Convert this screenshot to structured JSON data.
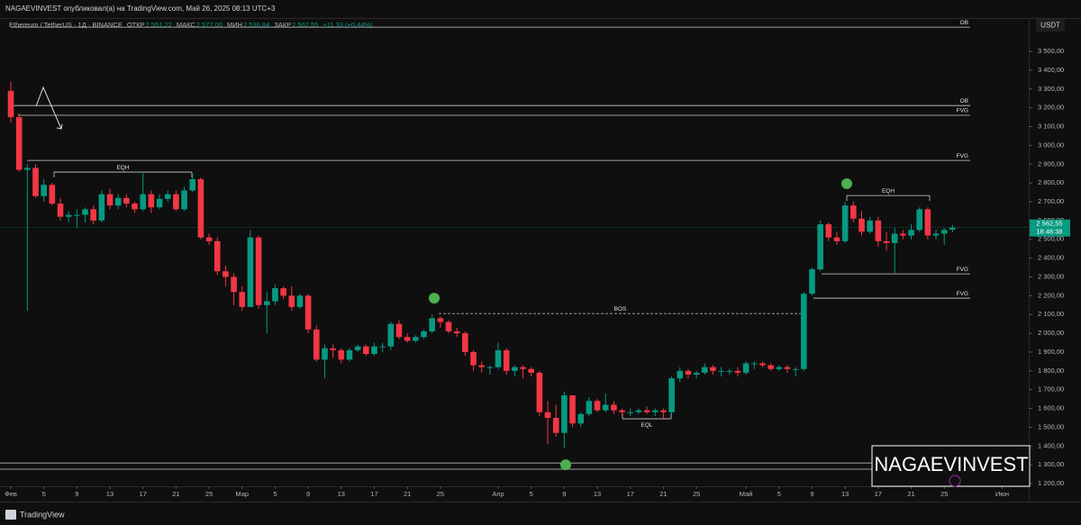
{
  "header": {
    "publisher": "NAGAEVINVEST опубликовал(а) на TradingView.com, Май 26, 2025 08:13 UTC+3",
    "symbol": "Ethereum / TetherUS · 1Д · BINANCE",
    "open_label": "ОТКР",
    "open": "2 551,22",
    "high_label": "МАКС",
    "high": "2 577,00",
    "low_label": "МИН",
    "low": "2 536,84",
    "close_label": "ЗАКР",
    "close": "2 562,55",
    "change": "+11,33 (+0,44%)",
    "currency": "USDT"
  },
  "footer": {
    "brand": "TradingView"
  },
  "watermark": "NAGAEVINVEST",
  "chart_data": {
    "type": "candlestick",
    "up_color": "#089981",
    "down_color": "#f23645",
    "x": [
      0,
      1,
      2,
      3,
      4,
      5,
      6,
      7,
      8,
      9,
      10,
      11,
      12,
      13,
      14,
      15,
      16,
      17,
      18,
      19,
      20,
      21,
      22,
      23,
      24,
      25,
      26,
      27,
      28,
      29,
      30,
      31,
      32,
      33,
      34,
      35,
      36,
      37,
      38,
      39,
      40,
      41,
      42,
      43,
      44,
      45,
      46,
      47,
      48,
      49,
      50,
      51,
      52,
      53,
      54,
      55,
      56,
      57,
      58,
      59,
      60,
      61,
      62,
      63,
      64,
      65,
      66,
      67,
      68,
      69,
      70,
      71,
      72,
      73,
      74,
      75,
      76,
      77,
      78,
      79,
      80,
      81,
      82,
      83,
      84,
      85,
      86,
      87,
      88,
      89,
      90,
      91,
      92,
      93,
      94,
      95,
      96,
      97,
      98,
      99,
      100,
      101,
      102,
      103,
      104,
      105,
      106,
      107,
      108,
      109,
      110,
      111,
      112,
      113,
      114
    ],
    "candles": [
      [
        3290,
        3340,
        3120,
        3150
      ],
      [
        3150,
        3170,
        2860,
        2870
      ],
      [
        2870,
        2900,
        2120,
        2880
      ],
      [
        2880,
        2900,
        2720,
        2730
      ],
      [
        2730,
        2820,
        2700,
        2790
      ],
      [
        2790,
        2800,
        2680,
        2690
      ],
      [
        2690,
        2720,
        2600,
        2620
      ],
      [
        2620,
        2650,
        2590,
        2630
      ],
      [
        2630,
        2660,
        2560,
        2630
      ],
      [
        2630,
        2670,
        2590,
        2660
      ],
      [
        2660,
        2680,
        2580,
        2600
      ],
      [
        2600,
        2760,
        2590,
        2740
      ],
      [
        2740,
        2770,
        2660,
        2680
      ],
      [
        2680,
        2740,
        2660,
        2720
      ],
      [
        2720,
        2740,
        2670,
        2690
      ],
      [
        2690,
        2700,
        2640,
        2660
      ],
      [
        2660,
        2850,
        2650,
        2740
      ],
      [
        2740,
        2760,
        2640,
        2670
      ],
      [
        2670,
        2740,
        2660,
        2715
      ],
      [
        2715,
        2760,
        2700,
        2740
      ],
      [
        2740,
        2760,
        2650,
        2660
      ],
      [
        2660,
        2780,
        2650,
        2760
      ],
      [
        2760,
        2850,
        2750,
        2820
      ],
      [
        2820,
        2830,
        2500,
        2510
      ],
      [
        2510,
        2530,
        2470,
        2490
      ],
      [
        2490,
        2510,
        2310,
        2330
      ],
      [
        2330,
        2360,
        2250,
        2300
      ],
      [
        2300,
        2320,
        2150,
        2220
      ],
      [
        2220,
        2250,
        2120,
        2140
      ],
      [
        2140,
        2550,
        2140,
        2510
      ],
      [
        2510,
        2520,
        2130,
        2150
      ],
      [
        2150,
        2220,
        2000,
        2170
      ],
      [
        2170,
        2260,
        2150,
        2240
      ],
      [
        2240,
        2250,
        2180,
        2200
      ],
      [
        2200,
        2250,
        2120,
        2140
      ],
      [
        2140,
        2210,
        2130,
        2200
      ],
      [
        2200,
        2210,
        2000,
        2020
      ],
      [
        2020,
        2040,
        1850,
        1860
      ],
      [
        1860,
        1940,
        1760,
        1920
      ],
      [
        1920,
        1940,
        1870,
        1910
      ],
      [
        1910,
        1920,
        1840,
        1860
      ],
      [
        1860,
        1920,
        1850,
        1910
      ],
      [
        1910,
        1940,
        1900,
        1930
      ],
      [
        1930,
        1940,
        1880,
        1890
      ],
      [
        1890,
        1950,
        1880,
        1930
      ],
      [
        1930,
        1950,
        1900,
        1930
      ],
      [
        1930,
        2060,
        1910,
        2050
      ],
      [
        2050,
        2070,
        1970,
        1980
      ],
      [
        1980,
        2000,
        1950,
        1960
      ],
      [
        1960,
        1990,
        1950,
        1980
      ],
      [
        1980,
        2020,
        1970,
        2010
      ],
      [
        2010,
        2100,
        2000,
        2080
      ],
      [
        2080,
        2090,
        2030,
        2060
      ],
      [
        2060,
        2070,
        2000,
        2010
      ],
      [
        2010,
        2030,
        1980,
        2000
      ],
      [
        2000,
        2010,
        1880,
        1900
      ],
      [
        1900,
        1910,
        1800,
        1830
      ],
      [
        1830,
        1850,
        1790,
        1820
      ],
      [
        1820,
        1830,
        1780,
        1820
      ],
      [
        1820,
        1950,
        1810,
        1910
      ],
      [
        1910,
        1920,
        1780,
        1800
      ],
      [
        1800,
        1830,
        1770,
        1820
      ],
      [
        1820,
        1830,
        1760,
        1810
      ],
      [
        1810,
        1820,
        1770,
        1790
      ],
      [
        1790,
        1800,
        1560,
        1580
      ],
      [
        1580,
        1640,
        1410,
        1550
      ],
      [
        1550,
        1620,
        1450,
        1470
      ],
      [
        1470,
        1690,
        1390,
        1670
      ],
      [
        1670,
        1670,
        1500,
        1520
      ],
      [
        1520,
        1580,
        1500,
        1570
      ],
      [
        1570,
        1660,
        1560,
        1640
      ],
      [
        1640,
        1650,
        1580,
        1590
      ],
      [
        1590,
        1680,
        1580,
        1620
      ],
      [
        1620,
        1640,
        1570,
        1590
      ],
      [
        1590,
        1600,
        1560,
        1580
      ],
      [
        1580,
        1600,
        1560,
        1580
      ],
      [
        1580,
        1600,
        1570,
        1590
      ],
      [
        1590,
        1610,
        1570,
        1580
      ],
      [
        1580,
        1600,
        1560,
        1590
      ],
      [
        1590,
        1600,
        1540,
        1580
      ],
      [
        1580,
        1770,
        1570,
        1760
      ],
      [
        1760,
        1820,
        1740,
        1800
      ],
      [
        1800,
        1810,
        1760,
        1780
      ],
      [
        1780,
        1800,
        1760,
        1790
      ],
      [
        1790,
        1840,
        1780,
        1820
      ],
      [
        1820,
        1830,
        1780,
        1800
      ],
      [
        1800,
        1820,
        1770,
        1800
      ],
      [
        1800,
        1810,
        1780,
        1800
      ],
      [
        1800,
        1820,
        1770,
        1790
      ],
      [
        1790,
        1850,
        1780,
        1840
      ],
      [
        1840,
        1850,
        1810,
        1840
      ],
      [
        1840,
        1850,
        1820,
        1830
      ],
      [
        1830,
        1840,
        1800,
        1810
      ],
      [
        1810,
        1830,
        1800,
        1820
      ],
      [
        1820,
        1830,
        1790,
        1810
      ],
      [
        1810,
        1820,
        1770,
        1810
      ],
      [
        1810,
        2220,
        1800,
        2210
      ],
      [
        2210,
        2350,
        2200,
        2340
      ],
      [
        2340,
        2600,
        2330,
        2580
      ],
      [
        2580,
        2590,
        2490,
        2510
      ],
      [
        2510,
        2540,
        2470,
        2490
      ],
      [
        2490,
        2700,
        2480,
        2680
      ],
      [
        2680,
        2700,
        2590,
        2610
      ],
      [
        2610,
        2650,
        2520,
        2540
      ],
      [
        2540,
        2620,
        2530,
        2600
      ],
      [
        2600,
        2620,
        2460,
        2490
      ],
      [
        2490,
        2540,
        2440,
        2480
      ],
      [
        2480,
        2560,
        2320,
        2530
      ],
      [
        2530,
        2550,
        2500,
        2520
      ],
      [
        2520,
        2580,
        2500,
        2550
      ],
      [
        2550,
        2670,
        2540,
        2660
      ],
      [
        2660,
        2670,
        2500,
        2520
      ],
      [
        2520,
        2550,
        2500,
        2530
      ],
      [
        2530,
        2560,
        2470,
        2550
      ],
      [
        2551.22,
        2577,
        2536.84,
        2562.55
      ]
    ],
    "last_price_label": "2 562,55",
    "countdown": "18:46:38",
    "xlim": [
      -1,
      123
    ],
    "xticks": [
      {
        "value": 0,
        "label": "Фев"
      },
      {
        "value": 4,
        "label": "5"
      },
      {
        "value": 8,
        "label": "9"
      },
      {
        "value": 12,
        "label": "13"
      },
      {
        "value": 16,
        "label": "17"
      },
      {
        "value": 20,
        "label": "21"
      },
      {
        "value": 24,
        "label": "25"
      },
      {
        "value": 28,
        "label": "Мар"
      },
      {
        "value": 32,
        "label": "5"
      },
      {
        "value": 36,
        "label": "9"
      },
      {
        "value": 40,
        "label": "13"
      },
      {
        "value": 44,
        "label": "17"
      },
      {
        "value": 48,
        "label": "21"
      },
      {
        "value": 52,
        "label": "25"
      },
      {
        "value": 59,
        "label": "Апр"
      },
      {
        "value": 63,
        "label": "5"
      },
      {
        "value": 67,
        "label": "9"
      },
      {
        "value": 71,
        "label": "13"
      },
      {
        "value": 75,
        "label": "17"
      },
      {
        "value": 79,
        "label": "21"
      },
      {
        "value": 83,
        "label": "25"
      },
      {
        "value": 89,
        "label": "Май"
      },
      {
        "value": 93,
        "label": "5"
      },
      {
        "value": 97,
        "label": "9"
      },
      {
        "value": 101,
        "label": "13"
      },
      {
        "value": 105,
        "label": "17"
      },
      {
        "value": 109,
        "label": "21"
      },
      {
        "value": 113,
        "label": "25"
      },
      {
        "value": 120,
        "label": "Июн"
      }
    ],
    "ylim": [
      1114,
      3668
    ],
    "yticks": [
      {
        "value": 1200,
        "label": "1 200,00"
      },
      {
        "value": 1300,
        "label": "1 300,00"
      },
      {
        "value": 1400,
        "label": "1 400,00"
      },
      {
        "value": 1500,
        "label": "1 500,00"
      },
      {
        "value": 1600,
        "label": "1 600,00"
      },
      {
        "value": 1700,
        "label": "1 700,00"
      },
      {
        "value": 1800,
        "label": "1 800,00"
      },
      {
        "value": 1900,
        "label": "1 900,00"
      },
      {
        "value": 2000,
        "label": "2 000,00"
      },
      {
        "value": 2100,
        "label": "2 100,00"
      },
      {
        "value": 2200,
        "label": "2 200,00"
      },
      {
        "value": 2300,
        "label": "2 300,00"
      },
      {
        "value": 2400,
        "label": "2 400,00"
      },
      {
        "value": 2500,
        "label": "2 500,00"
      },
      {
        "value": 2600,
        "label": "2 600,00"
      },
      {
        "value": 2700,
        "label": "2 700,00"
      },
      {
        "value": 2800,
        "label": "2 800,00"
      },
      {
        "value": 2900,
        "label": "2 900,00"
      },
      {
        "value": 3000,
        "label": "3 000,00"
      },
      {
        "value": 3100,
        "label": "3 100,00"
      },
      {
        "value": 3200,
        "label": "3 200,00"
      },
      {
        "value": 3300,
        "label": "3 300,00"
      },
      {
        "value": 3400,
        "label": "3 400,00"
      },
      {
        "value": 3500,
        "label": "3 500,00"
      }
    ],
    "levels": [
      {
        "label": "OB",
        "price": 3629
      },
      {
        "label": "OB",
        "price": 3212
      },
      {
        "label": "FVG",
        "price": 3160
      },
      {
        "label": "FVG",
        "price": 2920
      },
      {
        "label": "FVG",
        "price": 2316
      },
      {
        "label": "FVG",
        "price": 2187
      },
      {
        "label": "EQH",
        "price": 2858
      },
      {
        "label": "EQH",
        "price": 2733
      },
      {
        "label": "BOS",
        "price": 2105
      },
      {
        "label": "EQL",
        "price": 1545
      }
    ],
    "points": [
      2187,
      2796,
      1300
    ],
    "support": [
      1310,
      1277
    ]
  }
}
